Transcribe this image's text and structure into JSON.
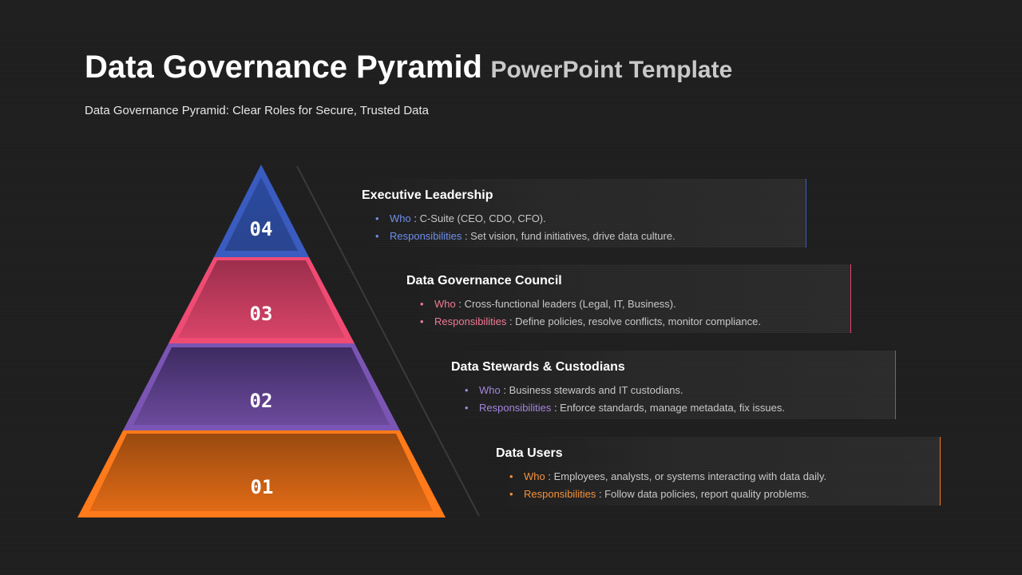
{
  "header": {
    "title_main": "Data Governance Pyramid",
    "title_sub": "PowerPoint Template",
    "subtitle": "Data Governance Pyramid: Clear Roles for Secure, Trusted Data"
  },
  "colors": {
    "level4": "#3a5bb8",
    "level3": "#e0476e",
    "level2": "#7d55b5",
    "level1": "#f07a1c"
  },
  "levels": [
    {
      "number": "04",
      "title": "Executive Leadership",
      "who_label": "Who",
      "who_text": " : C-Suite (CEO, CDO, CFO).",
      "resp_label": "Responsibilities",
      "resp_text": " : Set vision, fund initiatives, drive data culture.",
      "accent": "#6f8fe8"
    },
    {
      "number": "03",
      "title": "Data Governance Council",
      "who_label": "Who",
      "who_text": " : Cross-functional leaders (Legal, IT, Business).",
      "resp_label": "Responsibilities",
      "resp_text": " : Define  policies, resolve conflicts, monitor compliance.",
      "accent": "#f07a92"
    },
    {
      "number": "02",
      "title": "Data Stewards & Custodians",
      "who_label": "Who",
      "who_text": " : Business stewards and IT custodians.",
      "resp_label": "Responsibilities",
      "resp_text": " : Enforce  standards, manage metadata, fix issues.",
      "accent": "#a585dc"
    },
    {
      "number": "01",
      "title": "Data Users",
      "who_label": "Who",
      "who_text": " : Employees, analysts, or systems interacting with data daily.",
      "resp_label": "Responsibilities",
      "resp_text": " : Follow data policies, report quality problems.",
      "accent": "#f5913a"
    }
  ]
}
